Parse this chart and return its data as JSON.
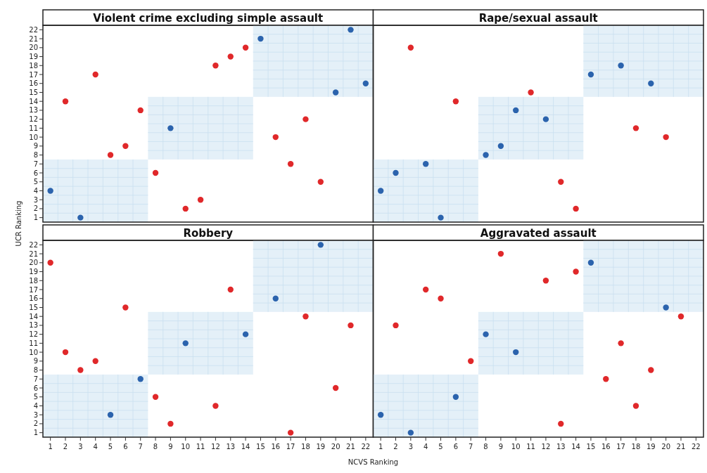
{
  "chart_data": [
    {
      "type": "scatter",
      "title": "Violent crime excluding simple assault",
      "ylabel": "UCR Ranking",
      "xlim": [
        0.5,
        22.5
      ],
      "ylim": [
        0.5,
        22.5
      ],
      "yticks": [
        1,
        2,
        3,
        4,
        5,
        6,
        7,
        8,
        9,
        10,
        11,
        12,
        13,
        14,
        15,
        16,
        17,
        18,
        19,
        20,
        21,
        22
      ],
      "tick_labels": "y",
      "marker": "circle",
      "grid": false,
      "bands": [
        {
          "axis": "x",
          "from": 0.5,
          "to": 7.5,
          "color": "#e4f0f8"
        },
        {
          "axis": "x",
          "from": 7.5,
          "to": 14.5,
          "color": "#e4f0f8"
        },
        {
          "axis": "x",
          "from": 14.5,
          "to": 22.5,
          "color": "#e4f0f8"
        }
      ],
      "series": [
        {
          "color": "#2b63ad",
          "x": [
            1,
            3,
            9,
            15,
            20,
            21,
            22
          ],
          "values": [
            4,
            1,
            11,
            21,
            15,
            22,
            16
          ]
        },
        {
          "color": "#e0282a",
          "x": [
            2,
            4,
            5,
            6,
            7,
            8,
            10,
            11,
            12,
            13,
            14,
            16,
            17,
            18,
            19
          ],
          "values": [
            14,
            17,
            8,
            9,
            13,
            6,
            2,
            3,
            18,
            19,
            20,
            10,
            7,
            12,
            5
          ]
        }
      ]
    },
    {
      "type": "scatter",
      "title": "Rape/sexual assault",
      "xlim": [
        0.5,
        22.5
      ],
      "ylim": [
        0.5,
        22.5
      ],
      "tick_labels": false,
      "marker": "circle",
      "grid": false,
      "bands": [
        {
          "axis": "x",
          "from": 0.5,
          "to": 7.5,
          "color": "#e4f0f8"
        },
        {
          "axis": "x",
          "from": 7.5,
          "to": 14.5,
          "color": "#e4f0f8"
        },
        {
          "axis": "x",
          "from": 14.5,
          "to": 22.5,
          "color": "#e4f0f8"
        }
      ],
      "series": [
        {
          "color": "#2b63ad",
          "x": [
            1,
            2,
            4,
            5,
            8,
            9,
            10,
            12,
            15,
            17,
            19
          ],
          "values": [
            4,
            6,
            7,
            1,
            8,
            9,
            13,
            12,
            17,
            18,
            16
          ]
        },
        {
          "color": "#e0282a",
          "x": [
            3,
            6,
            11,
            13,
            14,
            18,
            20
          ],
          "values": [
            20,
            14,
            15,
            5,
            2,
            11,
            10
          ]
        }
      ]
    },
    {
      "type": "scatter",
      "title": "Robbery",
      "xlabel": "NCVS Ranking",
      "xlim": [
        0.5,
        22.5
      ],
      "ylim": [
        0.5,
        22.5
      ],
      "xticks": [
        1,
        2,
        3,
        4,
        5,
        6,
        7,
        8,
        9,
        10,
        11,
        12,
        13,
        14,
        15,
        16,
        17,
        18,
        19,
        20,
        21,
        22
      ],
      "yticks": [
        1,
        2,
        3,
        4,
        5,
        6,
        7,
        8,
        9,
        10,
        11,
        12,
        13,
        14,
        15,
        16,
        17,
        18,
        19,
        20,
        21,
        22
      ],
      "marker": "circle",
      "grid": false,
      "bands": [
        {
          "axis": "x",
          "from": 0.5,
          "to": 7.5,
          "color": "#e4f0f8"
        },
        {
          "axis": "x",
          "from": 7.5,
          "to": 14.5,
          "color": "#e4f0f8"
        },
        {
          "axis": "x",
          "from": 14.5,
          "to": 22.5,
          "color": "#e4f0f8"
        }
      ],
      "series": [
        {
          "color": "#2b63ad",
          "x": [
            5,
            7,
            10,
            14,
            16,
            19
          ],
          "values": [
            3,
            7,
            11,
            12,
            16,
            22
          ]
        },
        {
          "color": "#e0282a",
          "x": [
            1,
            2,
            3,
            4,
            6,
            8,
            9,
            12,
            13,
            17,
            18,
            20,
            21
          ],
          "values": [
            20,
            10,
            8,
            9,
            15,
            5,
            2,
            4,
            17,
            1,
            14,
            6,
            13
          ]
        }
      ]
    },
    {
      "type": "scatter",
      "title": "Aggravated assault",
      "xlim": [
        0.5,
        22.5
      ],
      "ylim": [
        0.5,
        22.5
      ],
      "xticks": [
        1,
        2,
        3,
        4,
        5,
        6,
        7,
        8,
        9,
        10,
        11,
        12,
        13,
        14,
        15,
        16,
        17,
        18,
        19,
        20,
        21,
        22
      ],
      "tick_labels": "x",
      "marker": "circle",
      "grid": false,
      "bands": [
        {
          "axis": "x",
          "from": 0.5,
          "to": 7.5,
          "color": "#e4f0f8"
        },
        {
          "axis": "x",
          "from": 7.5,
          "to": 14.5,
          "color": "#e4f0f8"
        },
        {
          "axis": "x",
          "from": 14.5,
          "to": 22.5,
          "color": "#e4f0f8"
        }
      ],
      "series": [
        {
          "color": "#2b63ad",
          "x": [
            1,
            3,
            6,
            8,
            10,
            15,
            20
          ],
          "values": [
            3,
            1,
            5,
            12,
            10,
            20,
            15
          ]
        },
        {
          "color": "#e0282a",
          "x": [
            2,
            4,
            5,
            7,
            9,
            12,
            13,
            14,
            16,
            17,
            18,
            19,
            21
          ],
          "values": [
            13,
            17,
            16,
            9,
            21,
            18,
            2,
            19,
            7,
            11,
            4,
            8,
            14
          ]
        }
      ]
    }
  ]
}
